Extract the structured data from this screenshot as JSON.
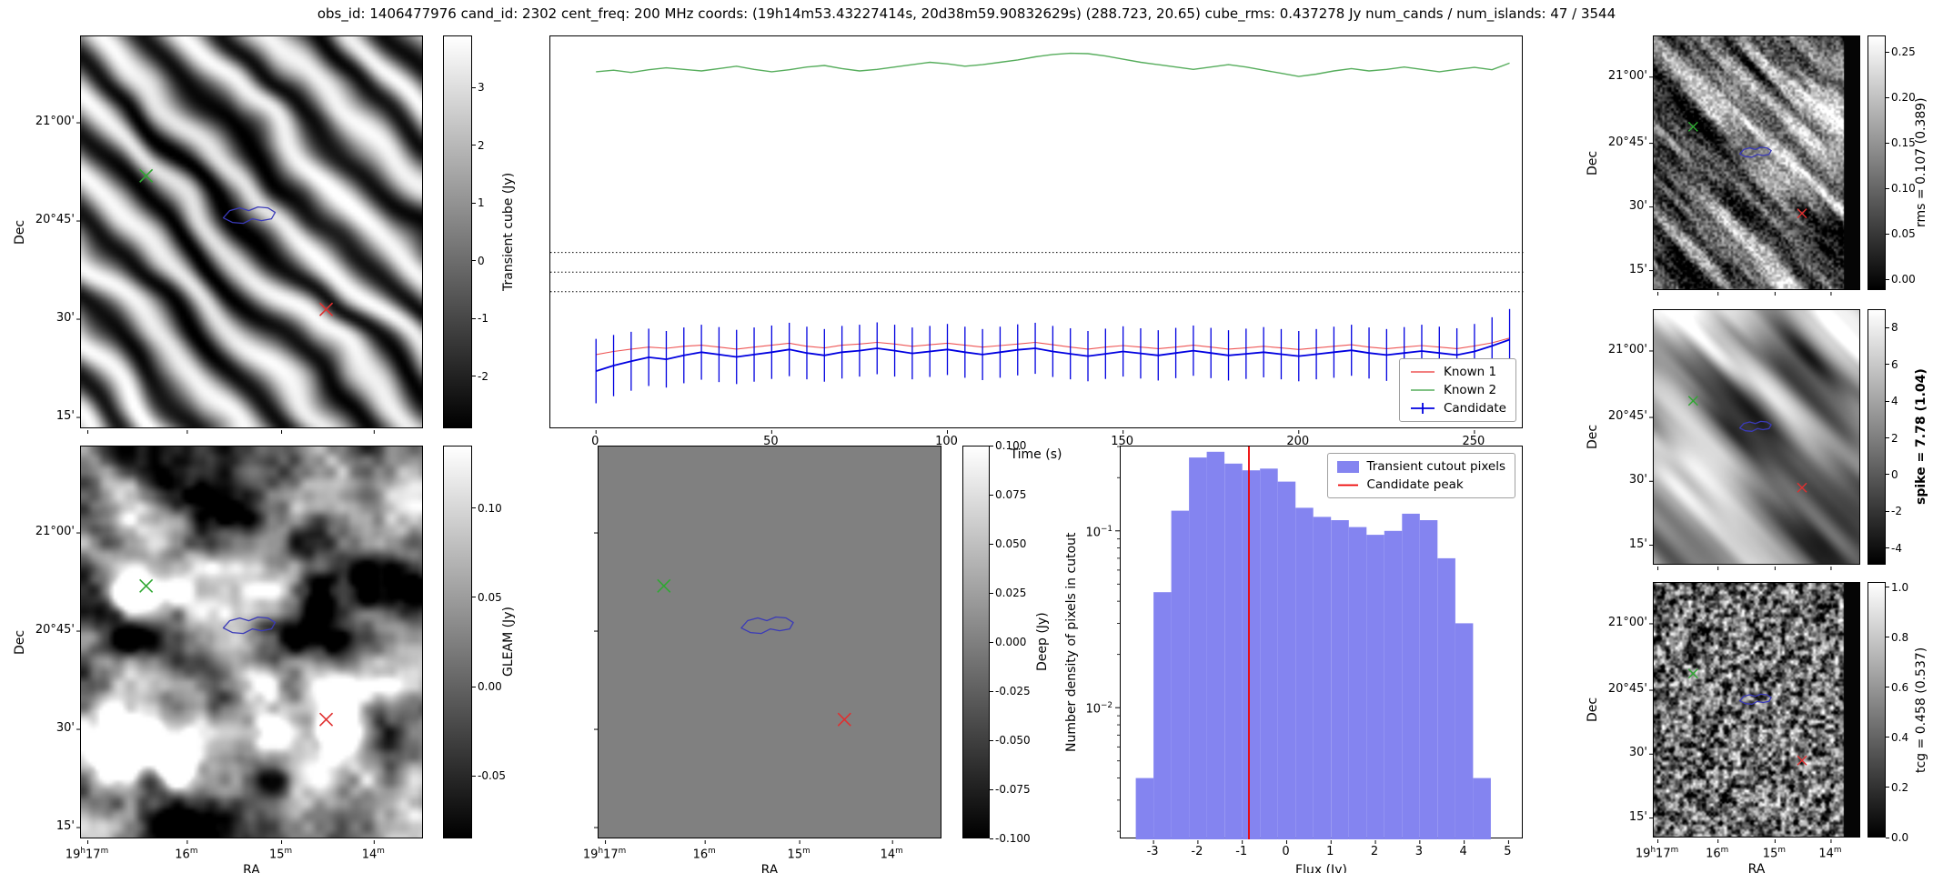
{
  "title": "obs_id: 1406477976 cand_id: 2302 cent_freq: 200 MHz coords: (19h14m53.43227414s, 20d38m59.90832629s) (288.723, 20.65) cube_rms: 0.437278 Jy num_cands / num_islands: 47 / 3544",
  "axes": {
    "dec_label": "Dec",
    "ra_label": "RA",
    "dec_tick_labels": [
      "21°00'",
      "20°45'",
      "30'",
      "15'"
    ],
    "ra_tick_labels": [
      "19h17m",
      "16m",
      "15m",
      "14m"
    ]
  },
  "markers": {
    "known_source_marker_color": "#2fa832",
    "candidate_marker_color": "#e03030",
    "island_contour_color": "#3a3ab8"
  },
  "image_panels": [
    {
      "key": "transient",
      "colorbar": "transient"
    },
    {
      "key": "gleam",
      "colorbar": "gleam"
    },
    {
      "key": "deep",
      "colorbar": "deep"
    },
    {
      "key": "rms",
      "colorbar": "rms"
    },
    {
      "key": "spike",
      "colorbar": "spike"
    },
    {
      "key": "tcg",
      "colorbar": "tcg"
    }
  ],
  "colorbars": {
    "transient": {
      "label": "Transient cube (Jy)",
      "tick_labels": [
        "3",
        "2",
        "1",
        "0",
        "-1",
        "-2"
      ],
      "tick_values": [
        3,
        2,
        1,
        0,
        -1,
        -2
      ],
      "vmin": -2.9,
      "vmax": 3.9,
      "bold": false
    },
    "gleam": {
      "label": "GLEAM (Jy)",
      "tick_labels": [
        "0.10",
        "0.05",
        "0.00",
        "-0.05"
      ],
      "tick_values": [
        0.1,
        0.05,
        0.0,
        -0.05
      ],
      "vmin": -0.085,
      "vmax": 0.135,
      "bold": false
    },
    "deep": {
      "label": "Deep (Jy)",
      "tick_labels": [
        "0.100",
        "0.075",
        "0.050",
        "0.025",
        "0.000",
        "-0.025",
        "-0.050",
        "-0.075",
        "-0.100"
      ],
      "tick_values": [
        0.1,
        0.075,
        0.05,
        0.025,
        0,
        -0.025,
        -0.05,
        -0.075,
        -0.1
      ],
      "vmin": -0.1,
      "vmax": 0.1,
      "bold": false
    },
    "rms": {
      "label": "rms = 0.107 (0.389)",
      "tick_labels": [
        "0.25",
        "0.20",
        "0.15",
        "0.10",
        "0.05",
        "0.00"
      ],
      "tick_values": [
        0.25,
        0.2,
        0.15,
        0.1,
        0.05,
        0
      ],
      "vmin": -0.012,
      "vmax": 0.268,
      "bold": false
    },
    "spike": {
      "label": "spike = 7.78 (1.04)",
      "tick_labels": [
        "8",
        "6",
        "4",
        "2",
        "0",
        "-2",
        "-4"
      ],
      "tick_values": [
        8,
        6,
        4,
        2,
        0,
        -2,
        -4
      ],
      "vmin": -4.9,
      "vmax": 9.0,
      "bold": true
    },
    "tcg": {
      "label": "tcg = 0.458 (0.537)",
      "tick_labels": [
        "1.0",
        "0.8",
        "0.6",
        "0.4",
        "0.2",
        "0.0"
      ],
      "tick_values": [
        1,
        0.8,
        0.6,
        0.4,
        0.2,
        0
      ],
      "vmin": 0,
      "vmax": 1.02,
      "bold": false
    }
  },
  "chart_data": [
    {
      "type": "line",
      "name": "candidate_lightcurve",
      "xlabel": "Time (s)",
      "xlim": [
        -13,
        264
      ],
      "ylim": [
        0,
        1
      ],
      "x_ticks": [
        0,
        50,
        100,
        150,
        200,
        250
      ],
      "dotted_hlines": [
        0.45,
        0.4,
        0.35
      ],
      "legend_position": "lower right",
      "x": [
        0,
        5,
        10,
        15,
        20,
        25,
        30,
        35,
        40,
        45,
        50,
        55,
        60,
        65,
        70,
        75,
        80,
        85,
        90,
        95,
        100,
        105,
        110,
        115,
        120,
        125,
        130,
        135,
        140,
        145,
        150,
        155,
        160,
        165,
        170,
        175,
        180,
        185,
        190,
        195,
        200,
        205,
        210,
        215,
        220,
        225,
        230,
        235,
        240,
        245,
        250,
        255,
        260
      ],
      "series": [
        {
          "name": "Known 1",
          "color": "#ee5555",
          "values": [
            0.19,
            0.198,
            0.204,
            0.209,
            0.206,
            0.211,
            0.214,
            0.209,
            0.204,
            0.209,
            0.214,
            0.219,
            0.211,
            0.207,
            0.214,
            0.217,
            0.221,
            0.217,
            0.211,
            0.215,
            0.219,
            0.214,
            0.209,
            0.213,
            0.217,
            0.221,
            0.215,
            0.209,
            0.204,
            0.209,
            0.213,
            0.209,
            0.205,
            0.209,
            0.214,
            0.209,
            0.204,
            0.207,
            0.211,
            0.207,
            0.203,
            0.207,
            0.211,
            0.215,
            0.209,
            0.205,
            0.209,
            0.213,
            0.209,
            0.205,
            0.212,
            0.22,
            0.232
          ]
        },
        {
          "name": "Known 2",
          "color": "#56ad5c",
          "values": [
            0.91,
            0.914,
            0.908,
            0.915,
            0.92,
            0.916,
            0.912,
            0.918,
            0.924,
            0.916,
            0.91,
            0.915,
            0.922,
            0.926,
            0.918,
            0.912,
            0.916,
            0.922,
            0.928,
            0.934,
            0.93,
            0.924,
            0.928,
            0.934,
            0.94,
            0.948,
            0.954,
            0.957,
            0.956,
            0.95,
            0.942,
            0.934,
            0.928,
            0.922,
            0.916,
            0.922,
            0.928,
            0.922,
            0.914,
            0.906,
            0.898,
            0.904,
            0.912,
            0.918,
            0.912,
            0.916,
            0.922,
            0.916,
            0.91,
            0.916,
            0.921,
            0.915,
            0.932
          ]
        },
        {
          "name": "Candidate",
          "color": "#0000e0",
          "values": [
            0.148,
            0.162,
            0.173,
            0.183,
            0.178,
            0.188,
            0.196,
            0.19,
            0.184,
            0.19,
            0.196,
            0.203,
            0.194,
            0.188,
            0.196,
            0.2,
            0.206,
            0.2,
            0.193,
            0.198,
            0.203,
            0.196,
            0.19,
            0.196,
            0.202,
            0.206,
            0.198,
            0.192,
            0.186,
            0.192,
            0.198,
            0.193,
            0.188,
            0.194,
            0.2,
            0.194,
            0.188,
            0.192,
            0.196,
            0.191,
            0.186,
            0.191,
            0.196,
            0.201,
            0.194,
            0.189,
            0.194,
            0.199,
            0.194,
            0.189,
            0.198,
            0.212,
            0.228
          ],
          "errors": [
            0.082,
            0.078,
            0.075,
            0.073,
            0.072,
            0.071,
            0.07,
            0.07,
            0.069,
            0.069,
            0.068,
            0.068,
            0.067,
            0.067,
            0.067,
            0.066,
            0.066,
            0.066,
            0.066,
            0.065,
            0.065,
            0.065,
            0.065,
            0.065,
            0.065,
            0.065,
            0.065,
            0.065,
            0.064,
            0.064,
            0.064,
            0.064,
            0.064,
            0.064,
            0.064,
            0.064,
            0.064,
            0.064,
            0.064,
            0.064,
            0.064,
            0.064,
            0.065,
            0.065,
            0.065,
            0.066,
            0.066,
            0.067,
            0.067,
            0.068,
            0.07,
            0.073,
            0.078
          ]
        }
      ]
    },
    {
      "type": "bar",
      "name": "flux_histogram",
      "xlabel": "Flux (Jy)",
      "ylabel": "Number density of pixels in cutout",
      "yscale": "log",
      "xlim": [
        -3.74,
        5.34
      ],
      "ylim": [
        0.0018,
        0.3
      ],
      "x_ticks": [
        -3,
        -2,
        -1,
        0,
        1,
        2,
        3,
        4,
        5
      ],
      "y_ticks": [
        0.1,
        0.01
      ],
      "bin_edges": [
        -3.4,
        -3.0,
        -2.6,
        -2.2,
        -1.8,
        -1.4,
        -1.0,
        -0.6,
        -0.2,
        0.2,
        0.6,
        1.0,
        1.4,
        1.8,
        2.2,
        2.6,
        3.0,
        3.4,
        3.8,
        4.2,
        4.6
      ],
      "densities": [
        0.004,
        0.045,
        0.13,
        0.26,
        0.28,
        0.24,
        0.22,
        0.225,
        0.19,
        0.135,
        0.12,
        0.115,
        0.105,
        0.095,
        0.1,
        0.125,
        0.115,
        0.07,
        0.03,
        0.004
      ],
      "bar_color": "#8484f0",
      "vline": {
        "x": -0.85,
        "color": "#ee0000"
      },
      "legend": [
        "Transient cutout pixels",
        "Candidate peak"
      ],
      "legend_position": "upper right"
    }
  ]
}
